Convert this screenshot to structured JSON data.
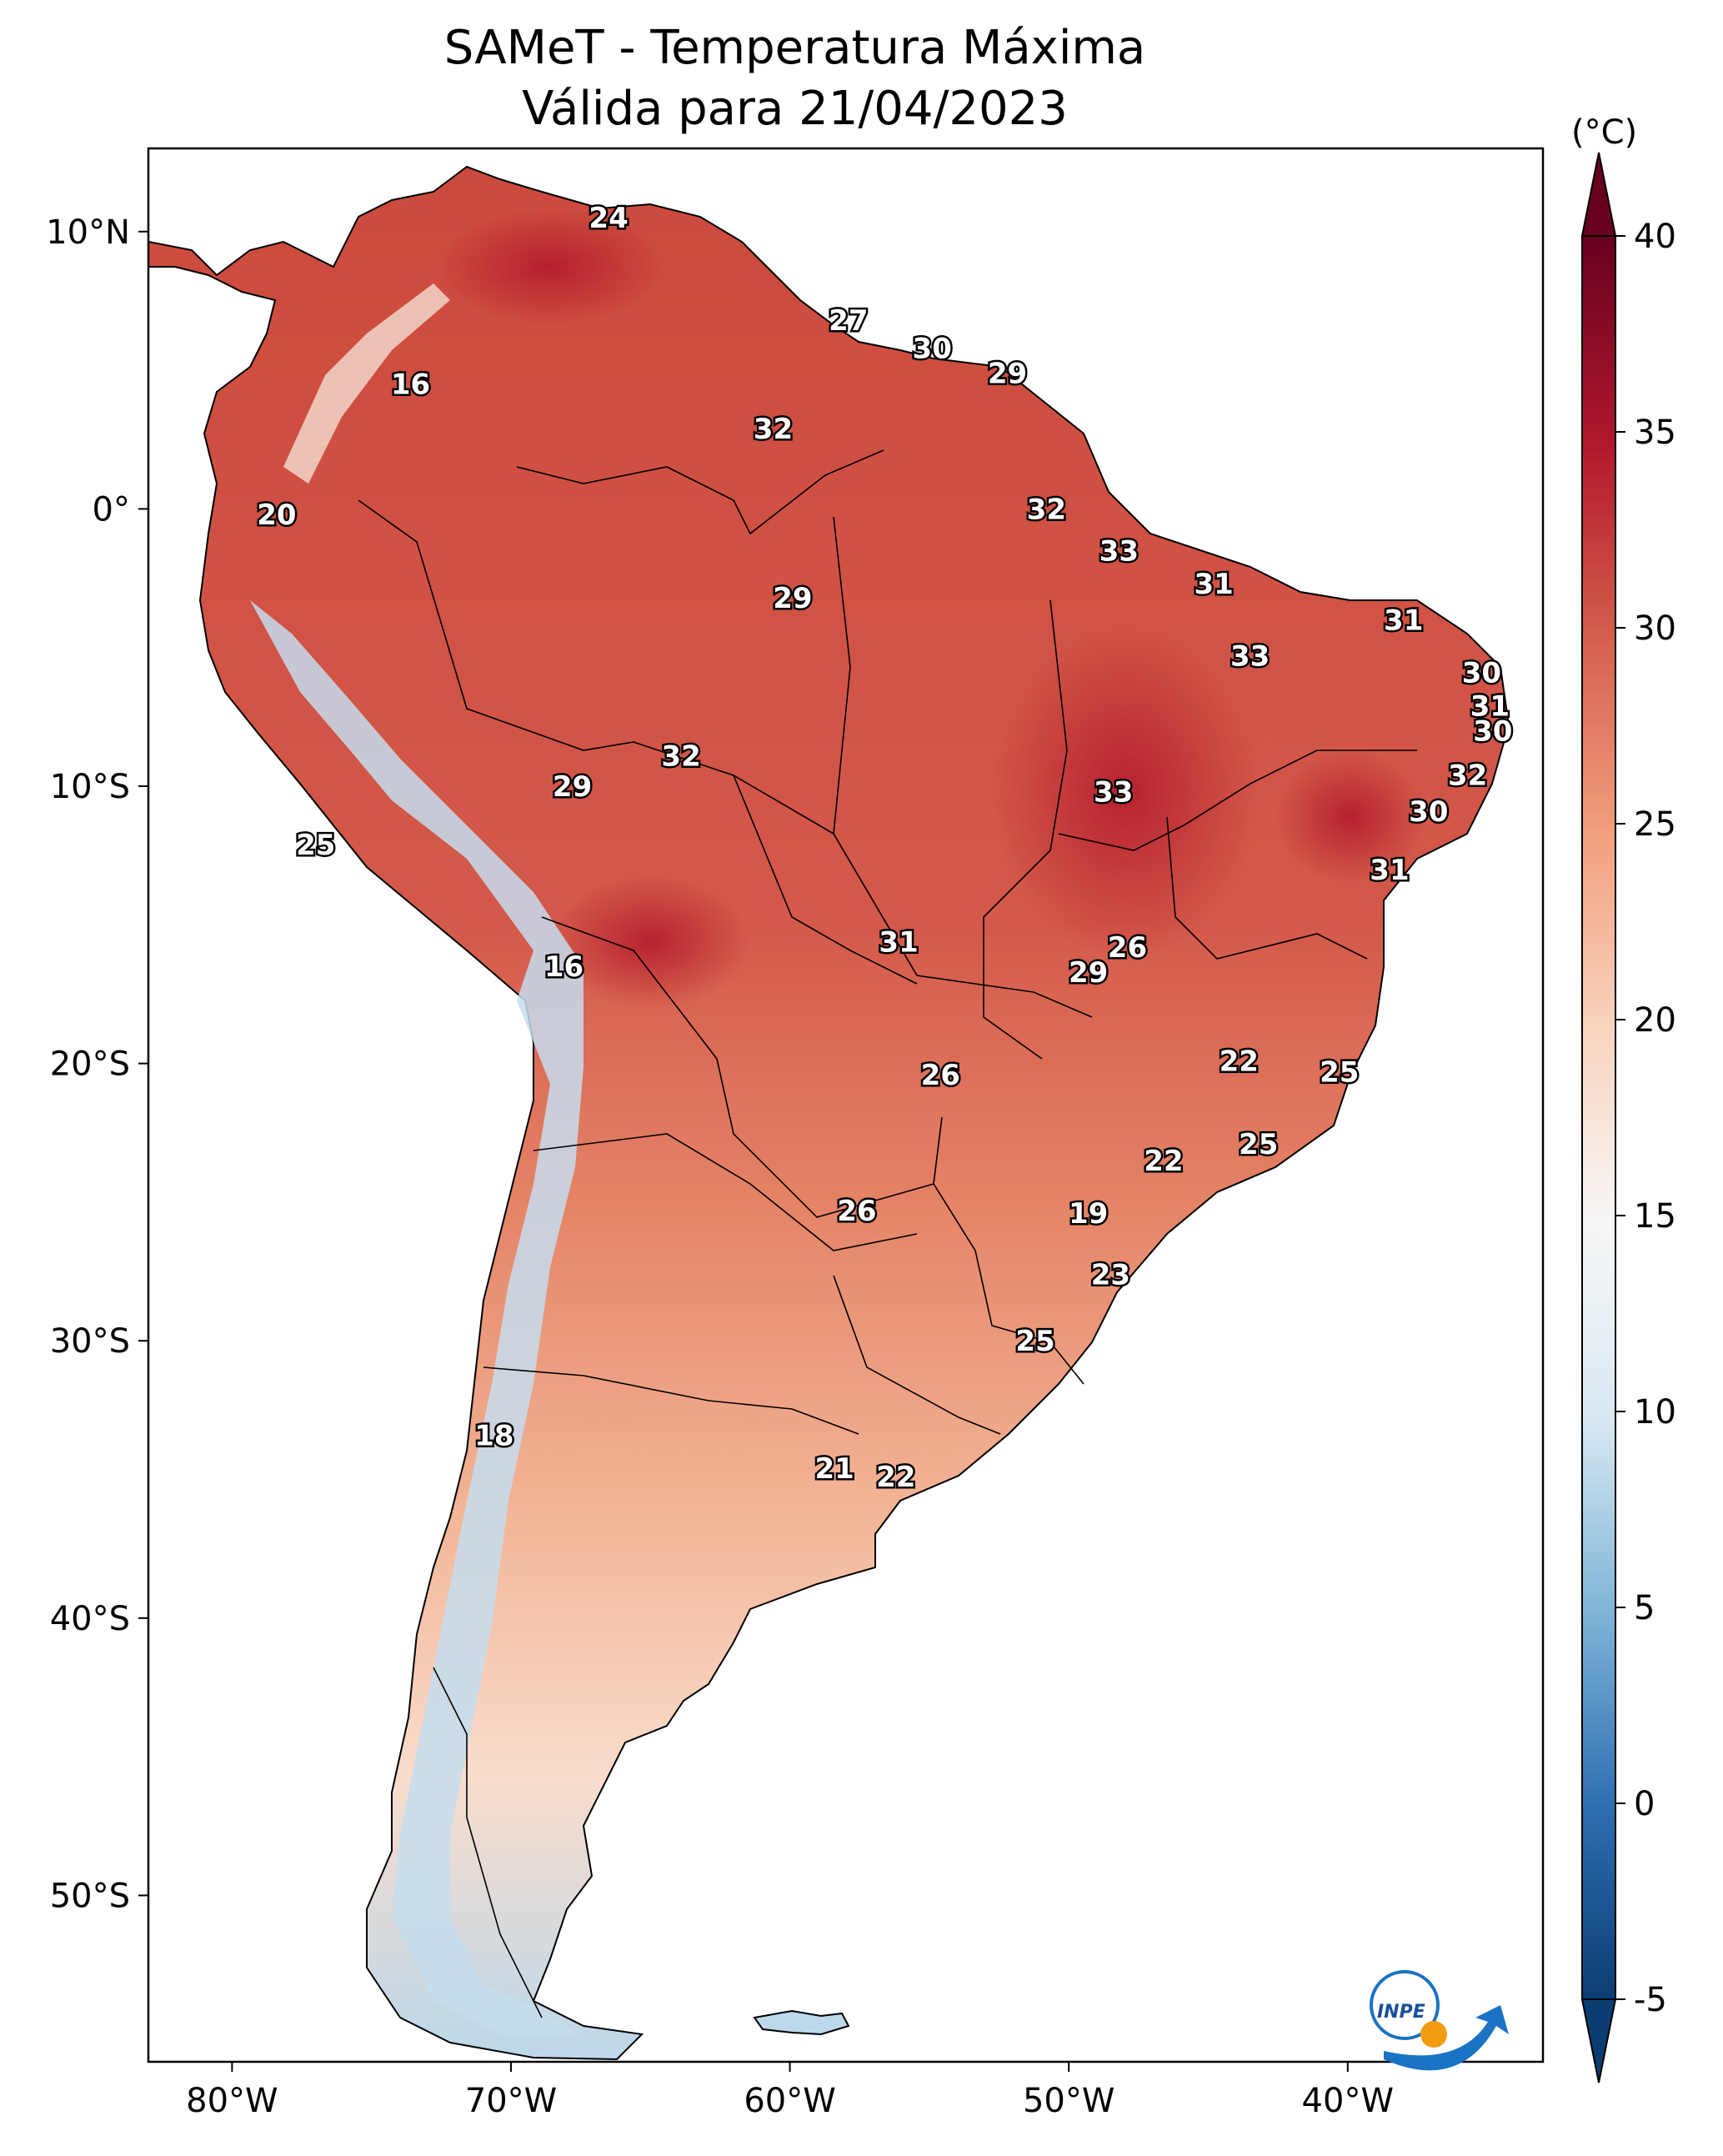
{
  "title": {
    "line1": "SAMeT - Temperatura Máxima",
    "line2": "Válida para 21/04/2023"
  },
  "axes": {
    "lon_ticks": [
      "80°W",
      "70°W",
      "60°W",
      "50°W",
      "40°W"
    ],
    "lon_values": [
      -80,
      -70,
      -60,
      -50,
      -40
    ],
    "lat_ticks": [
      "10°N",
      "0°",
      "10°S",
      "20°S",
      "30°S",
      "40°S",
      "50°S"
    ],
    "lat_values": [
      10,
      0,
      -10,
      -20,
      -30,
      -40,
      -50
    ],
    "lon_range": [
      -83,
      -33
    ],
    "lat_range": [
      -56,
      13
    ]
  },
  "colorbar": {
    "unit": "(°C)",
    "ticks": [
      "40",
      "35",
      "30",
      "25",
      "20",
      "15",
      "10",
      "5",
      "0",
      "-5"
    ],
    "tick_values": [
      40,
      35,
      30,
      25,
      20,
      15,
      10,
      5,
      0,
      -5
    ],
    "range": [
      -5,
      40
    ],
    "colors": [
      "#0b3d72",
      "#2e6fb2",
      "#7fb5d8",
      "#d9e9f3",
      "#f7f7f7",
      "#f9d4be",
      "#f2a07e",
      "#d6604d",
      "#b2182b",
      "#67001f"
    ]
  },
  "station_values": [
    {
      "lon": -66.5,
      "lat": 10.5,
      "label": "24"
    },
    {
      "lon": -57.9,
      "lat": 6.8,
      "label": "27"
    },
    {
      "lon": -54.9,
      "lat": 5.8,
      "label": "30"
    },
    {
      "lon": -52.2,
      "lat": 4.9,
      "label": "29"
    },
    {
      "lon": -73.6,
      "lat": 4.5,
      "label": "16"
    },
    {
      "lon": -60.6,
      "lat": 2.9,
      "label": "32"
    },
    {
      "lon": -78.4,
      "lat": -0.2,
      "label": "20"
    },
    {
      "lon": -50.8,
      "lat": 0.0,
      "label": "32"
    },
    {
      "lon": -48.2,
      "lat": -1.5,
      "label": "33"
    },
    {
      "lon": -59.9,
      "lat": -3.2,
      "label": "29"
    },
    {
      "lon": -44.8,
      "lat": -2.7,
      "label": "31"
    },
    {
      "lon": -38.0,
      "lat": -4.0,
      "label": "31"
    },
    {
      "lon": -43.5,
      "lat": -5.3,
      "label": "33"
    },
    {
      "lon": -35.2,
      "lat": -5.9,
      "label": "30"
    },
    {
      "lon": -34.9,
      "lat": -7.1,
      "label": "31"
    },
    {
      "lon": -34.8,
      "lat": -8.0,
      "label": "30"
    },
    {
      "lon": -63.9,
      "lat": -8.9,
      "label": "32"
    },
    {
      "lon": -35.7,
      "lat": -9.6,
      "label": "32"
    },
    {
      "lon": -67.8,
      "lat": -10.0,
      "label": "29"
    },
    {
      "lon": -48.4,
      "lat": -10.2,
      "label": "33"
    },
    {
      "lon": -37.1,
      "lat": -10.9,
      "label": "30"
    },
    {
      "lon": -77.0,
      "lat": -12.1,
      "label": "25"
    },
    {
      "lon": -38.5,
      "lat": -13.0,
      "label": "31"
    },
    {
      "lon": -56.1,
      "lat": -15.6,
      "label": "31"
    },
    {
      "lon": -47.9,
      "lat": -15.8,
      "label": "26"
    },
    {
      "lon": -49.3,
      "lat": -16.7,
      "label": "29"
    },
    {
      "lon": -68.1,
      "lat": -16.5,
      "label": "16"
    },
    {
      "lon": -43.9,
      "lat": -19.9,
      "label": "22"
    },
    {
      "lon": -54.6,
      "lat": -20.4,
      "label": "26"
    },
    {
      "lon": -40.3,
      "lat": -20.3,
      "label": "25"
    },
    {
      "lon": -43.2,
      "lat": -22.9,
      "label": "25"
    },
    {
      "lon": -46.6,
      "lat": -23.5,
      "label": "22"
    },
    {
      "lon": -57.6,
      "lat": -25.3,
      "label": "26"
    },
    {
      "lon": -49.3,
      "lat": -25.4,
      "label": "19"
    },
    {
      "lon": -48.5,
      "lat": -27.6,
      "label": "23"
    },
    {
      "lon": -51.2,
      "lat": -30.0,
      "label": "25"
    },
    {
      "lon": -70.6,
      "lat": -33.4,
      "label": "18"
    },
    {
      "lon": -58.4,
      "lat": -34.6,
      "label": "21"
    },
    {
      "lon": -56.2,
      "lat": -34.9,
      "label": "22"
    }
  ],
  "logo": {
    "text": "INPE"
  }
}
